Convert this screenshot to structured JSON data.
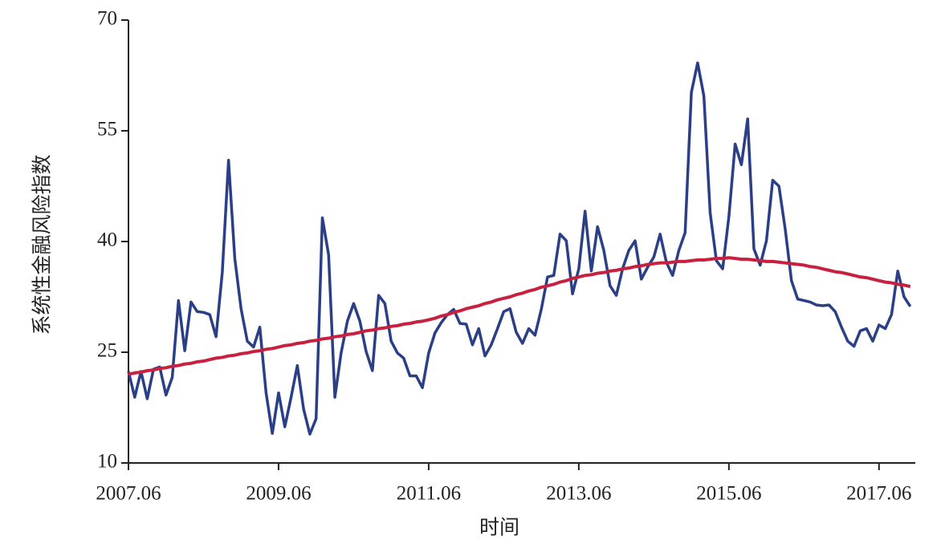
{
  "chart_data": {
    "type": "line",
    "x_label": "时间",
    "y_label": "系统性金融风险指数",
    "categories": [
      "2007.06",
      null,
      null,
      null,
      null,
      null,
      null,
      null,
      null,
      null,
      null,
      null,
      null,
      null,
      null,
      null,
      null,
      null,
      null,
      null,
      null,
      null,
      null,
      null,
      "2009.06",
      null,
      null,
      null,
      null,
      null,
      null,
      null,
      null,
      null,
      null,
      null,
      null,
      null,
      null,
      null,
      null,
      null,
      null,
      null,
      null,
      null,
      null,
      null,
      "2011.06",
      null,
      null,
      null,
      null,
      null,
      null,
      null,
      null,
      null,
      null,
      null,
      null,
      null,
      null,
      null,
      null,
      null,
      null,
      null,
      null,
      null,
      null,
      null,
      "2013.06",
      null,
      null,
      null,
      null,
      null,
      null,
      null,
      null,
      null,
      null,
      null,
      null,
      null,
      null,
      null,
      null,
      null,
      null,
      null,
      null,
      null,
      null,
      null,
      "2015.06",
      null,
      null,
      null,
      null,
      null,
      null,
      null,
      null,
      null,
      null,
      null,
      null,
      null,
      null,
      null,
      null,
      null,
      null,
      null,
      null,
      null,
      null,
      null,
      "2017.06",
      null,
      null,
      null,
      null,
      null
    ],
    "series": [
      {
        "color": "#2b3f86",
        "values": [
          22.4,
          18.9,
          22.4,
          18.7,
          22.7,
          23.0,
          19.2,
          21.6,
          32.0,
          25.2,
          31.8,
          30.5,
          30.4,
          30.1,
          27.1,
          35.8,
          51.0,
          37.7,
          30.9,
          26.5,
          25.7,
          28.4,
          19.5,
          14.0,
          19.5,
          14.9,
          18.9,
          23.2,
          17.3,
          13.9,
          16.0,
          43.2,
          38.2,
          18.9,
          24.9,
          29.2,
          31.6,
          29.2,
          25.1,
          22.5,
          32.7,
          31.6,
          26.5,
          24.9,
          24.2,
          21.8,
          21.8,
          20.2,
          24.9,
          27.6,
          29.0,
          30.1,
          30.8,
          28.9,
          28.8,
          26.0,
          28.2,
          24.5,
          26.0,
          28.2,
          30.5,
          30.9,
          27.7,
          26.2,
          28.2,
          27.3,
          30.8,
          35.2,
          35.4,
          41.0,
          40.1,
          32.9,
          36.3,
          44.1,
          36.0,
          42.0,
          38.8,
          34.0,
          32.7,
          36.3,
          38.8,
          40.1,
          34.9,
          36.5,
          37.9,
          41.0,
          37.2,
          35.4,
          38.8,
          41.2,
          60.2,
          64.2,
          59.7,
          43.9,
          37.4,
          36.3,
          43.4,
          53.2,
          50.4,
          56.6,
          39.0,
          36.8,
          40.1,
          48.3,
          47.5,
          41.7,
          34.7,
          32.2,
          32.0,
          31.8,
          31.4,
          31.3,
          31.4,
          30.5,
          28.4,
          26.5,
          25.8,
          27.9,
          28.2,
          26.5,
          28.7,
          28.2,
          30.1,
          36.0,
          32.5,
          31.2
        ]
      },
      {
        "color": "#c8213f",
        "values": [
          22.0,
          22.2,
          22.3,
          22.5,
          22.6,
          22.8,
          22.9,
          23.1,
          23.2,
          23.4,
          23.5,
          23.7,
          23.8,
          24.0,
          24.2,
          24.3,
          24.5,
          24.6,
          24.8,
          24.9,
          25.1,
          25.2,
          25.4,
          25.5,
          25.7,
          25.9,
          26.0,
          26.2,
          26.3,
          26.5,
          26.6,
          26.8,
          26.9,
          27.1,
          27.2,
          27.4,
          27.5,
          27.7,
          27.9,
          28.0,
          28.2,
          28.3,
          28.5,
          28.6,
          28.8,
          28.9,
          29.1,
          29.2,
          29.4,
          29.6,
          29.9,
          30.1,
          30.4,
          30.6,
          30.9,
          31.1,
          31.3,
          31.6,
          31.8,
          32.1,
          32.3,
          32.5,
          32.8,
          33.0,
          33.3,
          33.5,
          33.8,
          34.0,
          34.2,
          34.5,
          34.7,
          35.0,
          35.2,
          35.4,
          35.5,
          35.7,
          35.8,
          36.0,
          36.1,
          36.3,
          36.4,
          36.6,
          36.7,
          36.9,
          37.0,
          37.1,
          37.1,
          37.2,
          37.3,
          37.3,
          37.4,
          37.5,
          37.5,
          37.6,
          37.7,
          37.7,
          37.8,
          37.7,
          37.6,
          37.6,
          37.5,
          37.4,
          37.3,
          37.3,
          37.2,
          37.1,
          37.0,
          36.9,
          36.8,
          36.6,
          36.5,
          36.3,
          36.1,
          35.9,
          35.8,
          35.6,
          35.4,
          35.2,
          35.1,
          34.9,
          34.7,
          34.5,
          34.4,
          34.2,
          34.1,
          33.9
        ]
      }
    ],
    "ylim": [
      10,
      70
    ],
    "yticks": [
      10,
      25,
      40,
      55,
      70
    ]
  }
}
